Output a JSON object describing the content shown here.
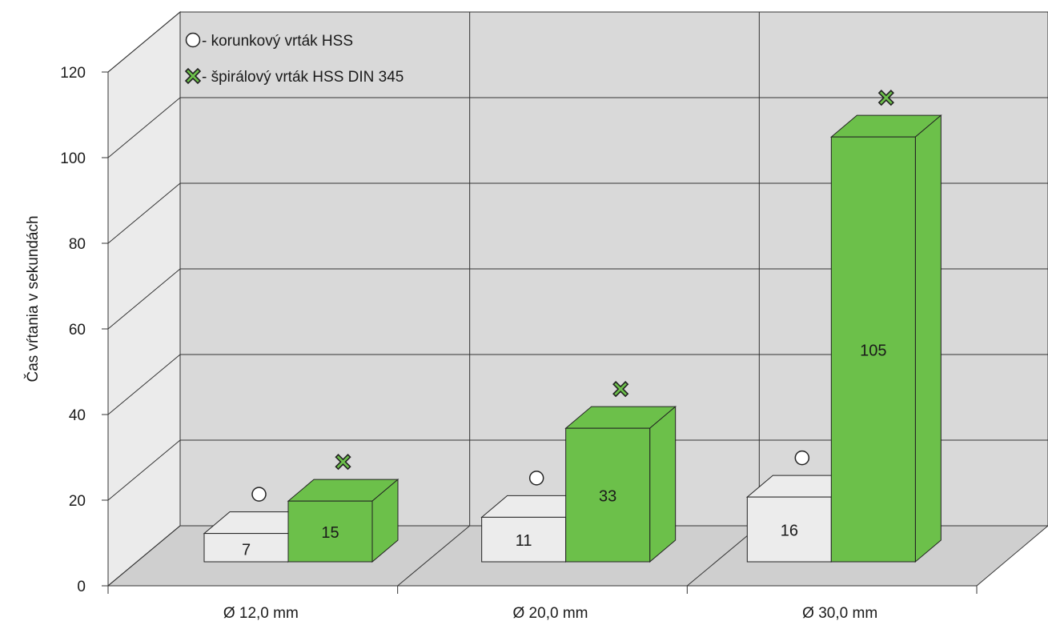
{
  "chart_data": {
    "type": "bar",
    "subtype": "3d-grouped",
    "categories": [
      "Ø 12,0 mm",
      "Ø 20,0 mm",
      "Ø 30,0 mm"
    ],
    "series": [
      {
        "name": "korunkový vrták HSS",
        "values": [
          7,
          11,
          16
        ],
        "color": "#ececec",
        "marker": "circle"
      },
      {
        "name": "špirálový vrták HSS DIN 345",
        "values": [
          15,
          33,
          105
        ],
        "color": "#6cc04a",
        "marker": "x-mark"
      }
    ],
    "ylabel": "Čas vŕtania v sekundách",
    "xlabel": "",
    "ylim": [
      0,
      120
    ],
    "yticks": [
      0,
      20,
      40,
      60,
      80,
      100,
      120
    ],
    "grid": true,
    "legend": {
      "position": "top-left",
      "items": [
        {
          "label": "- korunkový vrták HSS",
          "marker": "circle"
        },
        {
          "label": "- špirálový vrták HSS DIN 345",
          "marker": "x-mark"
        }
      ]
    },
    "colors": {
      "wall": "#d9d9d9",
      "side_wall": "#ebebeb",
      "floor": "#cfcfcf",
      "grid": "#333333",
      "bar_outline": "#222222"
    }
  }
}
